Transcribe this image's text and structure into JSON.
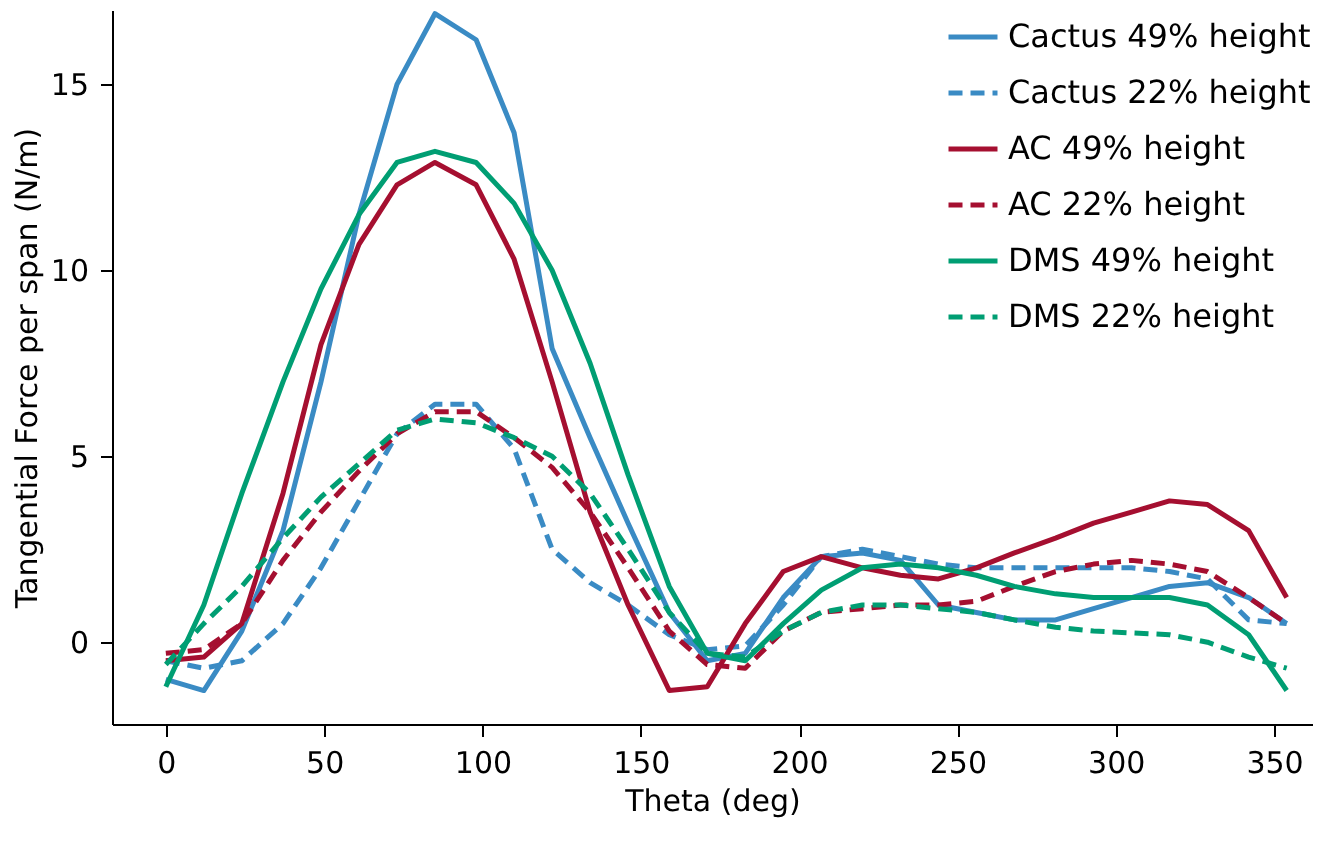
{
  "chart_data": {
    "type": "line",
    "xlabel": "Theta (deg)",
    "ylabel": "Tangential Force per span (N/m)",
    "x": [
      0,
      12,
      24,
      37,
      49,
      61,
      73,
      85,
      98,
      110,
      122,
      134,
      146,
      159,
      171,
      183,
      195,
      207,
      220,
      232,
      244,
      256,
      268,
      281,
      293,
      305,
      317,
      329,
      342,
      354
    ],
    "xlim": [
      -17,
      362
    ],
    "xticks": [
      0,
      50,
      100,
      150,
      200,
      250,
      300,
      350
    ],
    "ylim": [
      -2.2,
      17
    ],
    "yticks": [
      0,
      5,
      10,
      15
    ],
    "grid": false,
    "legend": "top right",
    "marker": "none",
    "series": [
      {
        "name": "Cactus 49% height",
        "color": "#3a8bc4",
        "line_style": "solid",
        "values": [
          -1.0,
          -1.3,
          0.3,
          3,
          7,
          11.5,
          15,
          16.9,
          16.2,
          13.7,
          7.9,
          5.5,
          3.2,
          0.8,
          -0.5,
          -0.3,
          1.2,
          2.3,
          2.4,
          2.2,
          1.0,
          0.8,
          0.6,
          0.6,
          0.9,
          1.2,
          1.5,
          1.6,
          1.2,
          0.5
        ]
      },
      {
        "name": "Cactus 22% height",
        "color": "#3a8bc4",
        "line_style": "dashed",
        "values": [
          -0.5,
          -0.7,
          -0.5,
          0.5,
          2,
          3.8,
          5.6,
          6.4,
          6.4,
          5.2,
          2.5,
          1.6,
          1.0,
          0.2,
          -0.2,
          -0.1,
          1.0,
          2.3,
          2.5,
          2.3,
          2.1,
          2.0,
          2.0,
          2.0,
          2.0,
          2.0,
          1.9,
          1.7,
          0.6,
          0.5
        ]
      },
      {
        "name": "AC 49% height",
        "color": "#a50f30",
        "line_style": "solid",
        "values": [
          -0.5,
          -0.4,
          0.5,
          4,
          8,
          10.7,
          12.3,
          12.9,
          12.3,
          10.3,
          7,
          3.5,
          1,
          -1.3,
          -1.2,
          0.5,
          1.9,
          2.3,
          2.0,
          1.8,
          1.7,
          2.0,
          2.4,
          2.8,
          3.2,
          3.5,
          3.8,
          3.7,
          3.0,
          1.2
        ]
      },
      {
        "name": "AC 22% height",
        "color": "#a50f30",
        "line_style": "dashed",
        "values": [
          -0.3,
          -0.2,
          0.5,
          2.2,
          3.5,
          4.6,
          5.6,
          6.2,
          6.2,
          5.5,
          4.7,
          3.5,
          2.0,
          0.3,
          -0.6,
          -0.7,
          0.3,
          0.8,
          0.9,
          1.0,
          1.0,
          1.1,
          1.5,
          1.9,
          2.1,
          2.2,
          2.1,
          1.9,
          1.2,
          0.5
        ]
      },
      {
        "name": "DMS 49% height",
        "color": "#009e73",
        "line_style": "solid",
        "values": [
          -1.2,
          1.0,
          4,
          7,
          9.5,
          11.5,
          12.9,
          13.2,
          12.9,
          11.8,
          10,
          7.5,
          4.5,
          1.5,
          -0.3,
          -0.5,
          0.5,
          1.4,
          2.0,
          2.1,
          2.0,
          1.8,
          1.5,
          1.3,
          1.2,
          1.2,
          1.2,
          1.0,
          0.2,
          -1.3
        ]
      },
      {
        "name": "DMS 22% height",
        "color": "#009e73",
        "line_style": "dashed",
        "values": [
          -0.6,
          0.5,
          1.5,
          2.8,
          3.9,
          4.8,
          5.7,
          6.0,
          5.9,
          5.5,
          5.0,
          4.0,
          2.5,
          0.8,
          -0.3,
          -0.4,
          0.3,
          0.8,
          1.0,
          1.0,
          0.9,
          0.8,
          0.6,
          0.4,
          0.3,
          0.25,
          0.2,
          0.0,
          -0.4,
          -0.7
        ]
      }
    ]
  }
}
